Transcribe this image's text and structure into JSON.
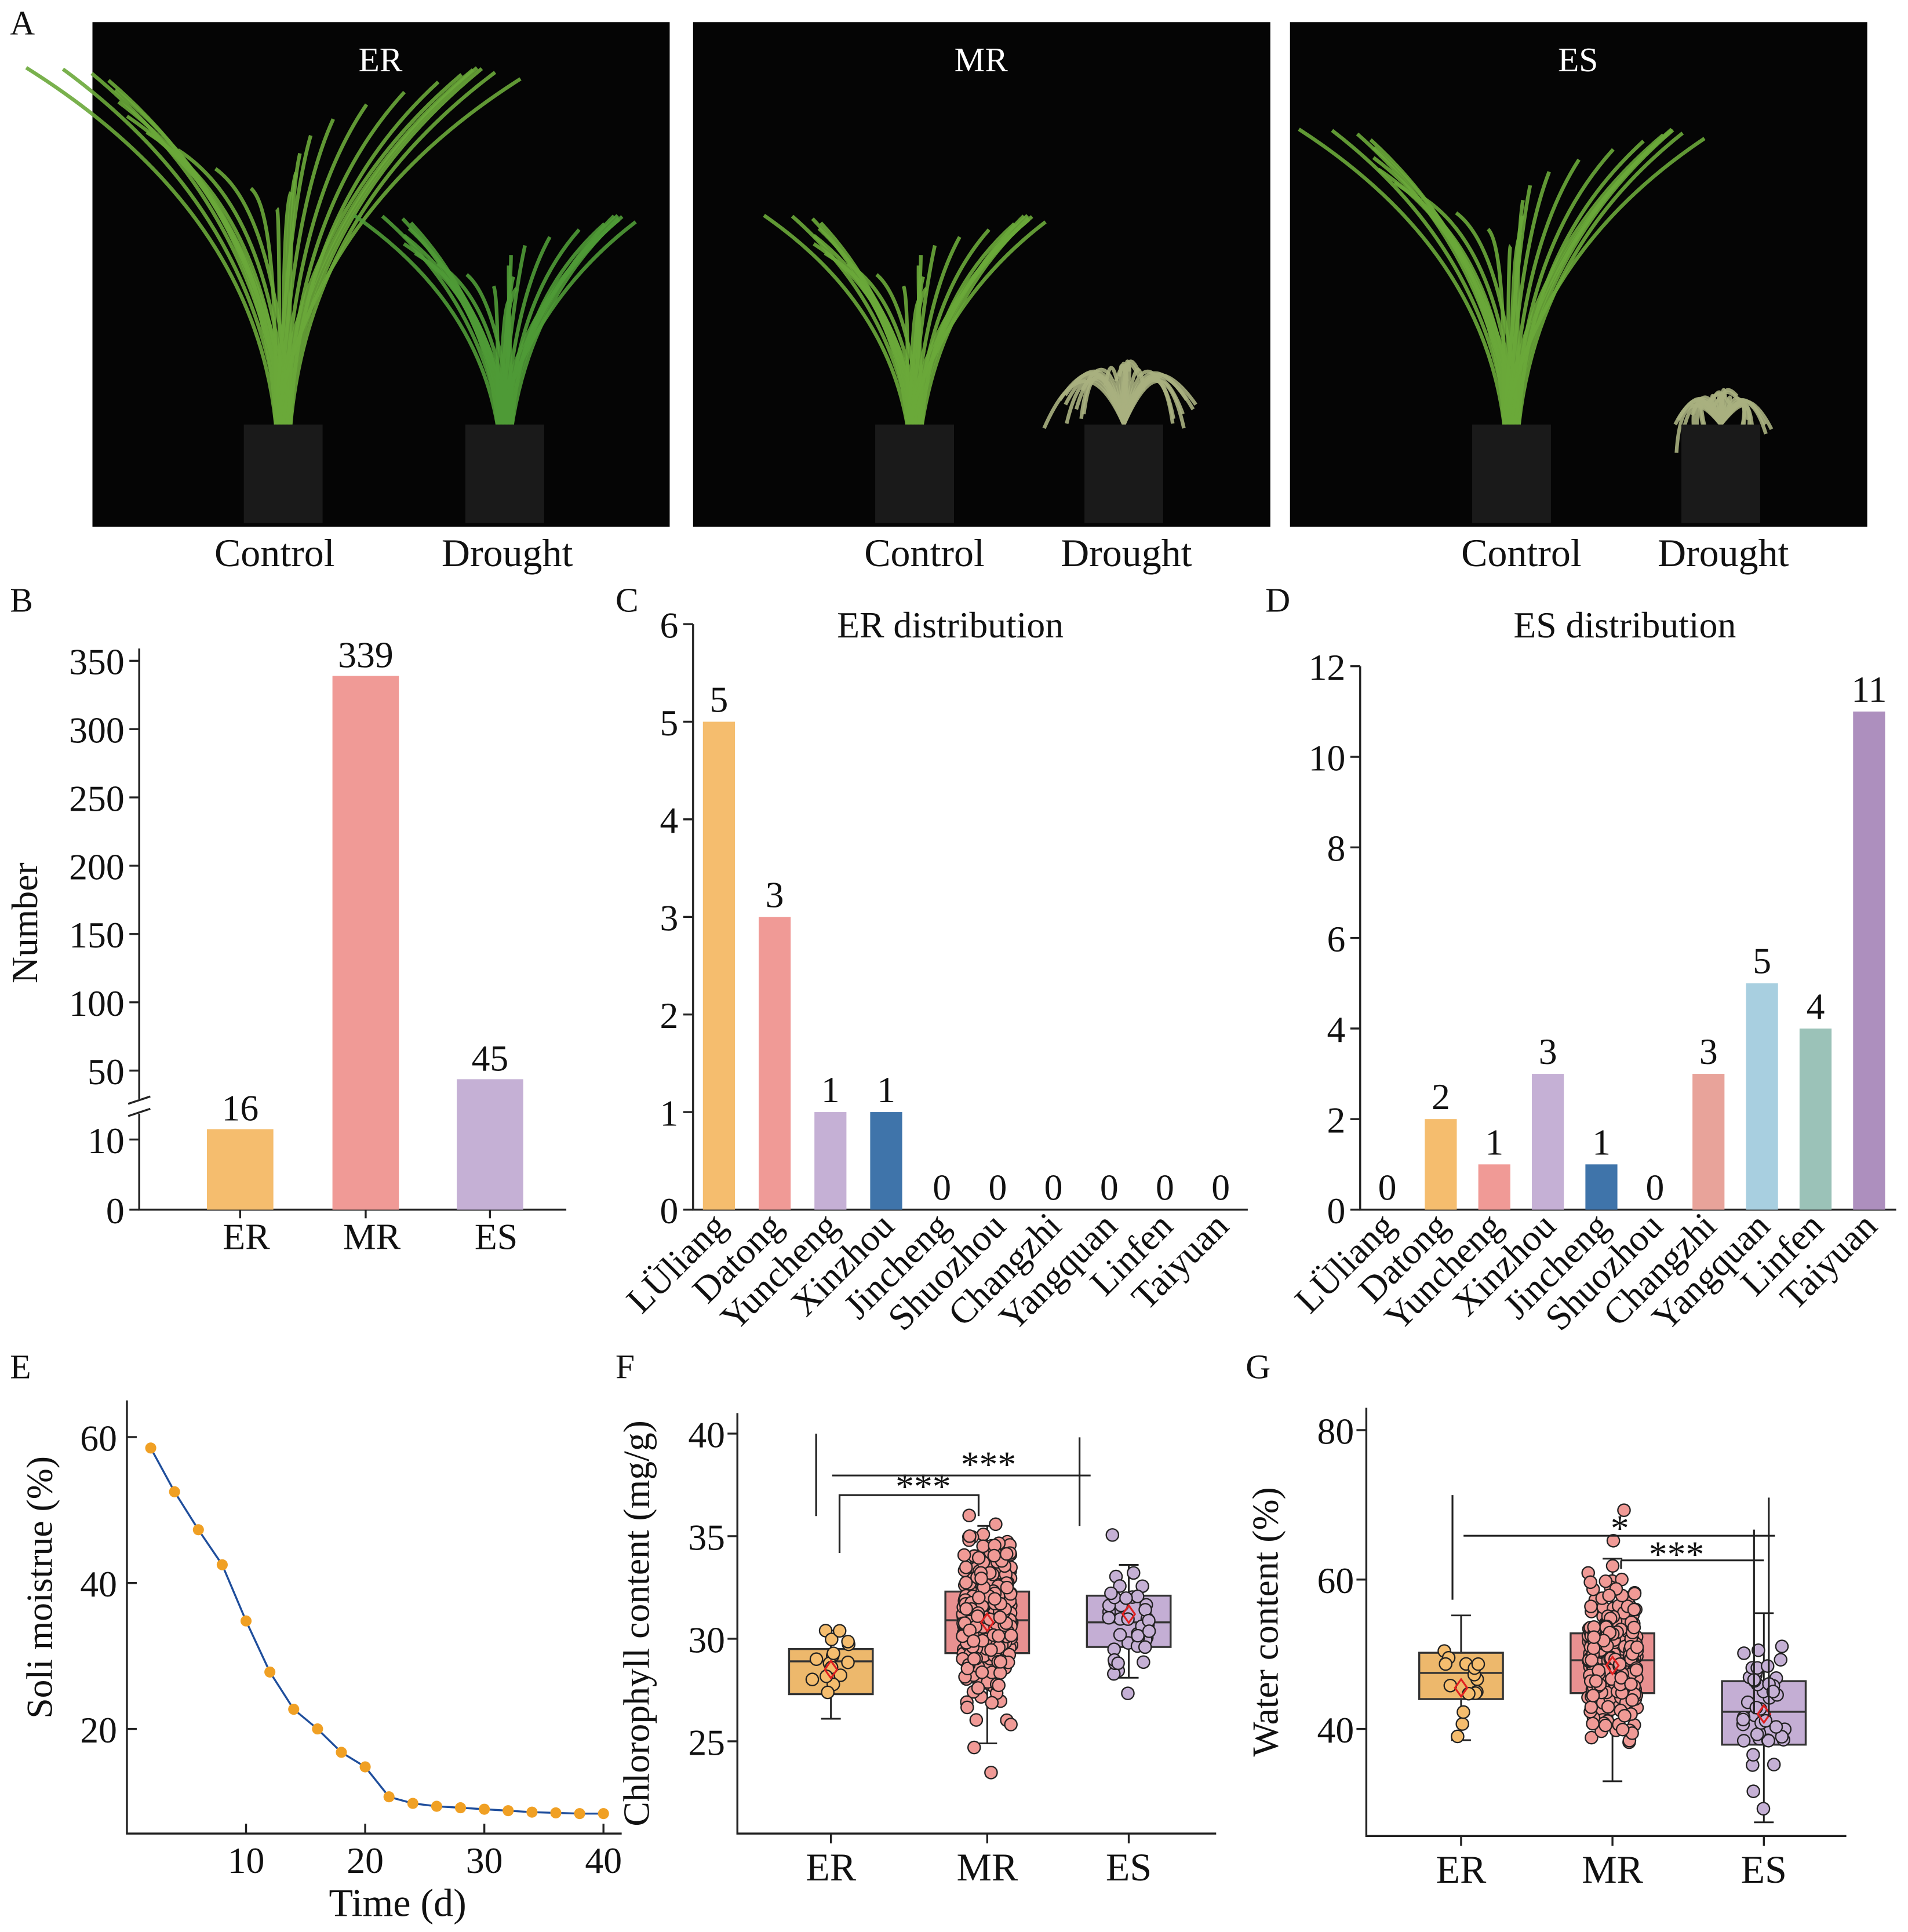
{
  "panel_labels": [
    "A",
    "B",
    "C",
    "D",
    "E",
    "F",
    "G"
  ],
  "photos": [
    {
      "title": "ER",
      "labels": [
        "Control",
        "Drought"
      ]
    },
    {
      "title": "MR",
      "labels": [
        "Control",
        "Drought"
      ]
    },
    {
      "title": "ES",
      "labels": [
        "Control",
        "Drought"
      ]
    }
  ],
  "chart_data": [
    {
      "id": "B",
      "type": "bar",
      "ylabel": "Number",
      "categories": [
        "ER",
        "MR",
        "ES"
      ],
      "values": [
        16,
        339,
        45
      ],
      "colors": [
        "#f5bd6e",
        "#f09a96",
        "#c5b0d5"
      ],
      "yticks": [
        0,
        10,
        50,
        100,
        150,
        200,
        250,
        300,
        350
      ],
      "axis_break": [
        10,
        50
      ]
    },
    {
      "id": "C",
      "type": "bar",
      "title": "ER distribution",
      "categories": [
        "LÜliang",
        "Datong",
        "Yuncheng",
        "Xinzhou",
        "Jincheng",
        "Shuozhou",
        "Changzhi",
        "Yangquan",
        "Linfen",
        "Taiyuan"
      ],
      "values": [
        5,
        3,
        1,
        1,
        0,
        0,
        0,
        0,
        0,
        0
      ],
      "colors": [
        "#f5bd6e",
        "#f09a96",
        "#c5b0d5",
        "#3f74aa",
        "#888",
        "#888",
        "#888",
        "#888",
        "#888",
        "#888"
      ],
      "ylim": [
        0,
        6
      ],
      "yticks": [
        0,
        1,
        2,
        3,
        4,
        5,
        6
      ]
    },
    {
      "id": "D",
      "type": "bar",
      "title": "ES distribution",
      "categories": [
        "LÜliang",
        "Datong",
        "Yuncheng",
        "Xinzhou",
        "Jincheng",
        "Shuozhou",
        "Changzhi",
        "Yangquan",
        "Linfen",
        "Taiyuan"
      ],
      "values": [
        0,
        2,
        1,
        3,
        1,
        0,
        3,
        5,
        4,
        11
      ],
      "colors": [
        "#888",
        "#f5bd6e",
        "#f09a96",
        "#c5b0d5",
        "#3f74aa",
        "#888",
        "#e8a39a",
        "#a8cfe0",
        "#9bc2b8",
        "#ad8fbe"
      ],
      "ylim": [
        0,
        12
      ],
      "yticks": [
        0,
        2,
        4,
        6,
        8,
        10,
        12
      ]
    },
    {
      "id": "E",
      "type": "line",
      "xlabel": "Time (d)",
      "ylabel": "Soli moistrue (%)",
      "x": [
        2,
        4,
        6,
        8,
        10,
        12,
        14,
        16,
        18,
        20,
        22,
        24,
        26,
        28,
        30,
        32,
        34,
        36,
        38,
        40
      ],
      "y": [
        58.5,
        52.5,
        47.3,
        42.5,
        34.8,
        27.8,
        22.7,
        20,
        16.8,
        14.8,
        10.7,
        9.8,
        9.4,
        9.2,
        9.0,
        8.8,
        8.6,
        8.5,
        8.4,
        8.4
      ],
      "xticks": [
        10,
        20,
        30,
        40
      ],
      "yticks": [
        20,
        40,
        60
      ],
      "line_color": "#1f4e9c",
      "marker_color": "#f0a024"
    },
    {
      "id": "F",
      "type": "box",
      "ylabel": "Chlorophyll content (mg/g)",
      "categories": [
        "ER",
        "MR",
        "ES"
      ],
      "yticks": [
        25,
        30,
        35,
        40
      ],
      "ylim": [
        21,
        41
      ],
      "boxes": [
        {
          "q1": 27.3,
          "median": 28.9,
          "q3": 29.5,
          "whisker_low": 26.1,
          "whisker_high": 30.4,
          "mean": 28.5,
          "n": 16,
          "color": "#edb86c",
          "point_color": "#f5bd6e"
        },
        {
          "q1": 29.3,
          "median": 30.9,
          "q3": 32.3,
          "whisker_low": 24.9,
          "whisker_high": 35.5,
          "mean": 30.8,
          "n": 339,
          "color": "#e89090",
          "point_color": "#f09a96"
        },
        {
          "q1": 29.6,
          "median": 30.8,
          "q3": 32.1,
          "whisker_low": 28.1,
          "whisker_high": 33.6,
          "mean": 31.2,
          "n": 45,
          "color": "#c4aed4",
          "point_color": "#c5b0d5"
        }
      ],
      "significance": [
        {
          "from": "ER",
          "to": "MR",
          "label": "***"
        },
        {
          "from": "ER",
          "to": "ES",
          "label": "***"
        }
      ]
    },
    {
      "id": "G",
      "type": "box",
      "ylabel": "Water content (%)",
      "categories": [
        "ER",
        "MR",
        "ES"
      ],
      "yticks": [
        40,
        60,
        80
      ],
      "ylim": [
        26,
        83
      ],
      "boxes": [
        {
          "q1": 44,
          "median": 47.5,
          "q3": 50.2,
          "whisker_low": 38.5,
          "whisker_high": 55.2,
          "mean": 45.5,
          "n": 16,
          "color": "#edb86c",
          "point_color": "#f5bd6e"
        },
        {
          "q1": 44.8,
          "median": 49.2,
          "q3": 52.8,
          "whisker_low": 33,
          "whisker_high": 62.8,
          "mean": 48.5,
          "n": 339,
          "color": "#e89090",
          "point_color": "#f09a96"
        },
        {
          "q1": 37.9,
          "median": 42.3,
          "q3": 46.4,
          "whisker_low": 27.5,
          "whisker_high": 55.5,
          "mean": 42,
          "n": 45,
          "color": "#c4aed4",
          "point_color": "#c5b0d5"
        }
      ],
      "significance": [
        {
          "from": "ER",
          "to": "ES",
          "label": "*"
        },
        {
          "from": "MR",
          "to": "ES",
          "label": "***"
        }
      ]
    }
  ]
}
